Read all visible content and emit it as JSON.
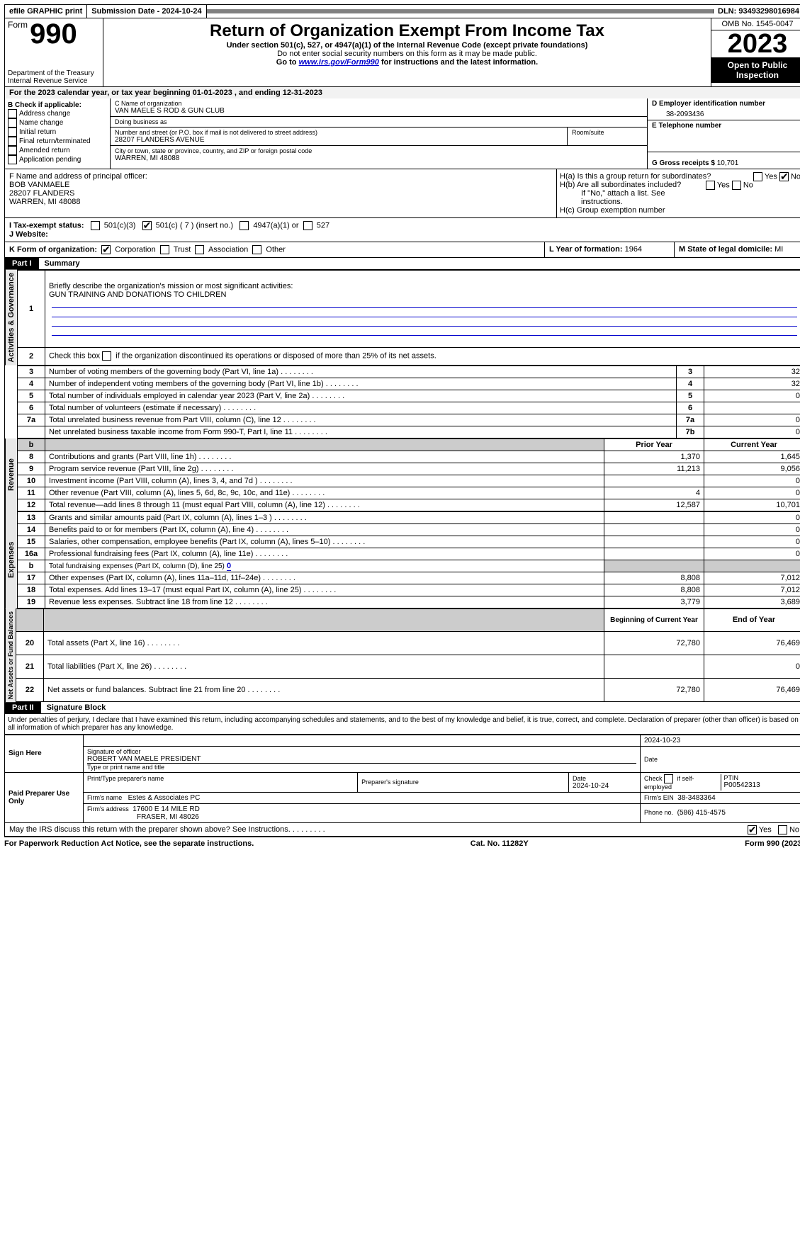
{
  "topbar": {
    "efile": "efile GRAPHIC print",
    "submission": "Submission Date - 2024-10-24",
    "dln": "DLN: 93493298016984"
  },
  "header": {
    "form_word": "Form",
    "form_num": "990",
    "dept": "Department of the Treasury",
    "irs": "Internal Revenue Service",
    "title": "Return of Organization Exempt From Income Tax",
    "sub1": "Under section 501(c), 527, or 4947(a)(1) of the Internal Revenue Code (except private foundations)",
    "sub2": "Do not enter social security numbers on this form as it may be made public.",
    "sub3_pre": "Go to ",
    "sub3_link": "www.irs.gov/Form990",
    "sub3_post": " for instructions and the latest information.",
    "omb": "OMB No. 1545-0047",
    "year": "2023",
    "inspection": "Open to Public Inspection"
  },
  "line_a": "For the 2023 calendar year, or tax year beginning 01-01-2023   , and ending 12-31-2023",
  "b": {
    "label": "B Check if applicable:",
    "items": [
      "Address change",
      "Name change",
      "Initial return",
      "Final return/terminated",
      "Amended return",
      "Application pending"
    ]
  },
  "c": {
    "name_label": "C Name of organization",
    "name": "VAN MAELE S ROD & GUN CLUB",
    "dba_label": "Doing business as",
    "dba": "",
    "street_label": "Number and street (or P.O. box if mail is not delivered to street address)",
    "street": "28207 FLANDERS AVENUE",
    "room_label": "Room/suite",
    "city_label": "City or town, state or province, country, and ZIP or foreign postal code",
    "city": "WARREN, MI  48088"
  },
  "d": {
    "label": "D Employer identification number",
    "val": "38-2093436"
  },
  "e": {
    "label": "E Telephone number",
    "val": ""
  },
  "g": {
    "label": "G Gross receipts $",
    "val": "10,701"
  },
  "f": {
    "label": "F  Name and address of principal officer:",
    "name": "BOB VANMAELE",
    "street": "28207 FLANDERS",
    "city": "WARREN, MI  48088"
  },
  "h": {
    "a": "H(a)  Is this a group return for subordinates?",
    "b": "H(b)  Are all subordinates included?",
    "b_note": "If \"No,\" attach a list. See instructions.",
    "c": "H(c)  Group exemption number"
  },
  "i": {
    "label": "I  Tax-exempt status:",
    "o1": "501(c)(3)",
    "o2": "501(c) ( 7 ) (insert no.)",
    "o3": "4947(a)(1) or",
    "o4": "527"
  },
  "j": {
    "label": "J  Website:",
    "val": ""
  },
  "k": {
    "label": "K Form of organization:",
    "opts": [
      "Corporation",
      "Trust",
      "Association",
      "Other"
    ]
  },
  "l": {
    "label": "L Year of formation:",
    "val": "1964"
  },
  "m": {
    "label": "M State of legal domicile:",
    "val": "MI"
  },
  "part1": {
    "header": "Part I",
    "title": "Summary",
    "side_ag": "Activities & Governance",
    "side_rev": "Revenue",
    "side_exp": "Expenses",
    "side_na": "Net Assets or Fund Balances",
    "l1_label": "Briefly describe the organization's mission or most significant activities:",
    "l1_val": "GUN TRAINING AND DONATIONS TO CHILDREN",
    "l2": "Check this box        if the organization discontinued its operations or disposed of more than 25% of its net assets.",
    "rows_ag": [
      {
        "n": "3",
        "d": "Number of voting members of the governing body (Part VI, line 1a)",
        "k": "3",
        "v": "32"
      },
      {
        "n": "4",
        "d": "Number of independent voting members of the governing body (Part VI, line 1b)",
        "k": "4",
        "v": "32"
      },
      {
        "n": "5",
        "d": "Total number of individuals employed in calendar year 2023 (Part V, line 2a)",
        "k": "5",
        "v": "0"
      },
      {
        "n": "6",
        "d": "Total number of volunteers (estimate if necessary)",
        "k": "6",
        "v": ""
      },
      {
        "n": "7a",
        "d": "Total unrelated business revenue from Part VIII, column (C), line 12",
        "k": "7a",
        "v": "0"
      },
      {
        "n": "",
        "d": "Net unrelated business taxable income from Form 990-T, Part I, line 11",
        "k": "7b",
        "v": "0"
      }
    ],
    "col_b": "b",
    "col_prior": "Prior Year",
    "col_curr": "Current Year",
    "rows_rev": [
      {
        "n": "8",
        "d": "Contributions and grants (Part VIII, line 1h)",
        "p": "1,370",
        "c": "1,645"
      },
      {
        "n": "9",
        "d": "Program service revenue (Part VIII, line 2g)",
        "p": "11,213",
        "c": "9,056"
      },
      {
        "n": "10",
        "d": "Investment income (Part VIII, column (A), lines 3, 4, and 7d )",
        "p": "",
        "c": "0"
      },
      {
        "n": "11",
        "d": "Other revenue (Part VIII, column (A), lines 5, 6d, 8c, 9c, 10c, and 11e)",
        "p": "4",
        "c": "0"
      },
      {
        "n": "12",
        "d": "Total revenue—add lines 8 through 11 (must equal Part VIII, column (A), line 12)",
        "p": "12,587",
        "c": "10,701"
      }
    ],
    "rows_exp": [
      {
        "n": "13",
        "d": "Grants and similar amounts paid (Part IX, column (A), lines 1–3 )",
        "p": "",
        "c": "0"
      },
      {
        "n": "14",
        "d": "Benefits paid to or for members (Part IX, column (A), line 4)",
        "p": "",
        "c": "0"
      },
      {
        "n": "15",
        "d": "Salaries, other compensation, employee benefits (Part IX, column (A), lines 5–10)",
        "p": "",
        "c": "0"
      },
      {
        "n": "16a",
        "d": "Professional fundraising fees (Part IX, column (A), line 11e)",
        "p": "",
        "c": "0"
      }
    ],
    "l16b_n": "b",
    "l16b": "Total fundraising expenses (Part IX, column (D), line 25)",
    "l16b_val": "0",
    "rows_exp2": [
      {
        "n": "17",
        "d": "Other expenses (Part IX, column (A), lines 11a–11d, 11f–24e)",
        "p": "8,808",
        "c": "7,012"
      },
      {
        "n": "18",
        "d": "Total expenses. Add lines 13–17 (must equal Part IX, column (A), line 25)",
        "p": "8,808",
        "c": "7,012"
      },
      {
        "n": "19",
        "d": "Revenue less expenses. Subtract line 18 from line 12",
        "p": "3,779",
        "c": "3,689"
      }
    ],
    "col_beg": "Beginning of Current Year",
    "col_end": "End of Year",
    "rows_na": [
      {
        "n": "20",
        "d": "Total assets (Part X, line 16)",
        "p": "72,780",
        "c": "76,469"
      },
      {
        "n": "21",
        "d": "Total liabilities (Part X, line 26)",
        "p": "",
        "c": "0"
      },
      {
        "n": "22",
        "d": "Net assets or fund balances. Subtract line 21 from line 20",
        "p": "72,780",
        "c": "76,469"
      }
    ]
  },
  "part2": {
    "header": "Part II",
    "title": "Signature Block",
    "decl": "Under penalties of perjury, I declare that I have examined this return, including accompanying schedules and statements, and to the best of my knowledge and belief, it is true, correct, and complete. Declaration of preparer (other than officer) is based on all information of which preparer has any knowledge.",
    "sign_here": "Sign Here",
    "sig_officer": "Signature of officer",
    "sig_date": "2024-10-23",
    "date_lbl": "Date",
    "officer_name": "ROBERT VAN MAELE PRESIDENT",
    "type_name": "Type or print name and title",
    "paid": "Paid Preparer Use Only",
    "pt_name_lbl": "Print/Type preparer's name",
    "pt_sig_lbl": "Preparer's signature",
    "pt_date_lbl": "Date",
    "pt_date": "2024-10-24",
    "pt_check": "Check        if self-employed",
    "pt_ptin_lbl": "PTIN",
    "pt_ptin": "P00542313",
    "firm_name_lbl": "Firm's name",
    "firm_name": "Estes & Associates PC",
    "firm_ein_lbl": "Firm's EIN",
    "firm_ein": "38-3483364",
    "firm_addr_lbl": "Firm's address",
    "firm_addr1": "17600 E 14 MILE RD",
    "firm_addr2": "FRASER, MI  48026",
    "phone_lbl": "Phone no.",
    "phone": "(586) 415-4575",
    "discuss": "May the IRS discuss this return with the preparer shown above? See Instructions.",
    "yes": "Yes",
    "no": "No"
  },
  "footer": {
    "pra": "For Paperwork Reduction Act Notice, see the separate instructions.",
    "cat": "Cat. No. 11282Y",
    "form": "Form 990 (2023)"
  }
}
